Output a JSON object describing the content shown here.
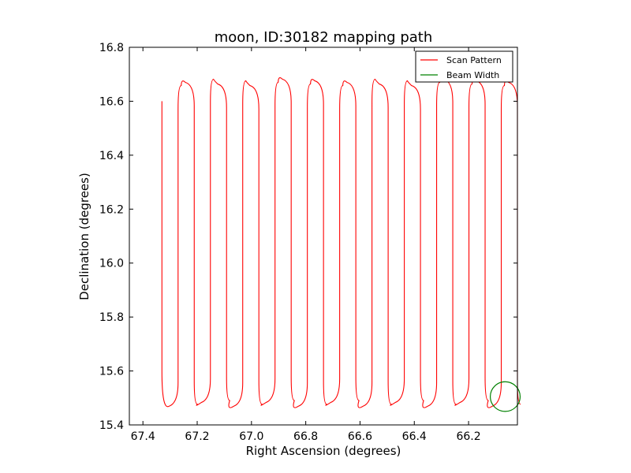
{
  "chart_data": {
    "type": "line",
    "title": "moon, ID:30182 mapping path",
    "xlabel": "Right Ascension (degrees)",
    "ylabel": "Declination (degrees)",
    "xlim": [
      67.45,
      66.02
    ],
    "ylim": [
      15.4,
      16.8
    ],
    "xticks": [
      67.4,
      67.2,
      67.0,
      66.8,
      66.6,
      66.4,
      66.2
    ],
    "xtick_labels": [
      "67.4",
      "67.2",
      "67.0",
      "66.8",
      "66.6",
      "66.4",
      "66.2"
    ],
    "yticks": [
      15.4,
      15.6,
      15.8,
      16.0,
      16.2,
      16.4,
      16.6,
      16.8
    ],
    "ytick_labels": [
      "15.4",
      "15.6",
      "15.8",
      "16.0",
      "16.2",
      "16.4",
      "16.6",
      "16.8"
    ],
    "grid": false,
    "legend_position": "top-right",
    "series": [
      {
        "name": "Scan Pattern",
        "color": "#ff0000",
        "scan": {
          "start_ra": 67.33,
          "end_ra": 66.02,
          "legs": 22,
          "dec_top": 16.67,
          "dec_bottom": 15.48,
          "start_dec": 16.6
        }
      },
      {
        "name": "Beam Width",
        "color": "#008000",
        "circle": {
          "center_ra": 66.065,
          "center_dec": 15.505,
          "radius_deg": 0.055
        }
      }
    ]
  }
}
